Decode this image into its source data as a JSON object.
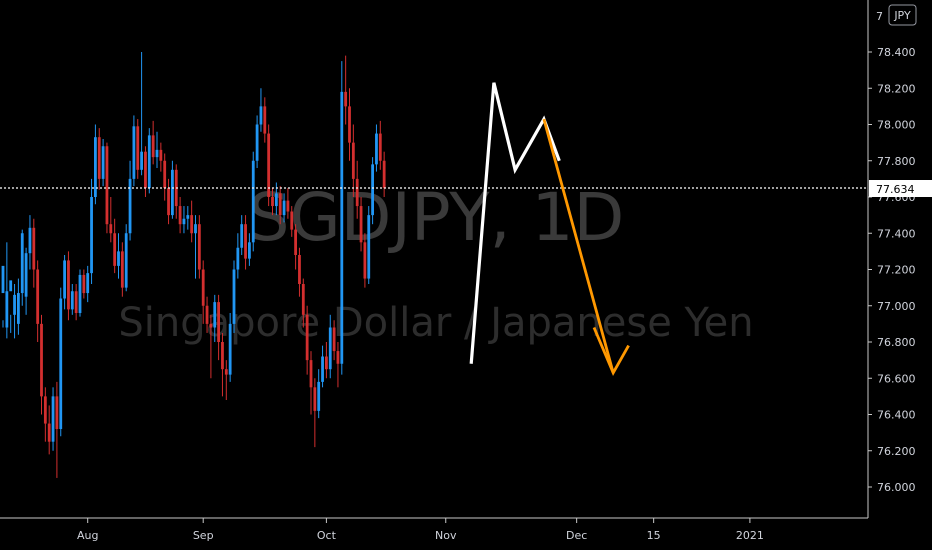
{
  "chart_data": {
    "type": "candlestick",
    "symbol": "SGDJPY, 1D",
    "description": "Singapore Dollar / Japanese Yen",
    "currency": "JPY",
    "current_price": "77.634",
    "y_ticks": [
      76.0,
      76.2,
      76.4,
      76.6,
      76.8,
      77.0,
      77.2,
      77.4,
      77.6,
      77.8,
      78.0,
      78.2,
      78.4
    ],
    "y_tick_labels": [
      "76.000",
      "76.200",
      "76.400",
      "76.600",
      "76.800",
      "77.000",
      "77.200",
      "77.400",
      "77.600",
      "77.800",
      "78.000",
      "78.200",
      "78.400"
    ],
    "ylim": [
      75.83,
      78.78
    ],
    "x_ticks": [
      {
        "label": "Aug",
        "index": 22
      },
      {
        "label": "Sep",
        "index": 52
      },
      {
        "label": "Oct",
        "index": 84
      },
      {
        "label": "Nov",
        "index": 115
      },
      {
        "label": "Dec",
        "index": 149
      },
      {
        "label": "15",
        "index": 169
      },
      {
        "label": "2021",
        "index": 194
      }
    ],
    "up_color": "#2196f3",
    "down_color": "#d32f2f",
    "white_pattern": [
      [
        121.6,
        76.68
      ],
      [
        127.5,
        78.23
      ],
      [
        133,
        77.75
      ],
      [
        140.5,
        78.03
      ],
      [
        144.5,
        77.8
      ]
    ],
    "orange_projection": [
      [
        140.5,
        78.03
      ],
      [
        158.5,
        76.63
      ]
    ],
    "orange_arrowhead": [
      [
        153.5,
        76.88
      ],
      [
        158.5,
        76.63
      ],
      [
        162.5,
        76.78
      ]
    ],
    "candles": [
      [
        77.07,
        77.22,
        76.92,
        76.88
      ],
      [
        76.88,
        77.08,
        77.35,
        76.82
      ],
      [
        77.08,
        77.14,
        76.95,
        76.85
      ],
      [
        76.95,
        77.06,
        77.12,
        76.82
      ],
      [
        76.9,
        77.07,
        77.15,
        76.84
      ],
      [
        77.07,
        77.4,
        77.42,
        77.0
      ],
      [
        77.05,
        77.29,
        77.32,
        76.95
      ],
      [
        77.29,
        77.43,
        77.5,
        77.2
      ],
      [
        77.43,
        77.2,
        77.48,
        77.1
      ],
      [
        77.2,
        76.9,
        77.25,
        76.8
      ],
      [
        76.9,
        76.5,
        76.95,
        76.4
      ],
      [
        76.5,
        76.35,
        76.55,
        76.25
      ],
      [
        76.35,
        76.25,
        76.45,
        76.18
      ],
      [
        76.25,
        76.5,
        76.55,
        76.2
      ],
      [
        76.5,
        76.32,
        76.58,
        76.05
      ],
      [
        76.32,
        77.04,
        77.1,
        76.28
      ],
      [
        77.04,
        77.25,
        77.28,
        76.98
      ],
      [
        77.25,
        76.98,
        77.3,
        76.92
      ],
      [
        76.98,
        77.08,
        77.12,
        76.95
      ],
      [
        77.08,
        76.96,
        77.12,
        76.92
      ],
      [
        76.96,
        77.17,
        77.2,
        76.94
      ],
      [
        77.17,
        77.07,
        77.2,
        77.04
      ],
      [
        77.07,
        77.18,
        77.22,
        77.02
      ],
      [
        77.18,
        77.6,
        77.7,
        77.12
      ],
      [
        77.6,
        77.93,
        78.0,
        77.56
      ],
      [
        77.93,
        77.7,
        77.98,
        77.64
      ],
      [
        77.7,
        77.88,
        77.92,
        77.66
      ],
      [
        77.88,
        77.45,
        77.9,
        77.4
      ],
      [
        77.45,
        77.4,
        77.6,
        77.35
      ],
      [
        77.4,
        77.22,
        77.48,
        77.18
      ],
      [
        77.22,
        77.3,
        77.4,
        77.15
      ],
      [
        77.3,
        77.1,
        77.35,
        77.05
      ],
      [
        77.1,
        77.4,
        77.45,
        77.08
      ],
      [
        77.4,
        77.7,
        77.8,
        77.36
      ],
      [
        77.7,
        77.99,
        78.05,
        77.66
      ],
      [
        77.99,
        77.75,
        78.03,
        77.7
      ],
      [
        77.75,
        77.85,
        78.4,
        77.72
      ],
      [
        77.85,
        77.65,
        77.88,
        77.6
      ],
      [
        77.65,
        77.94,
        77.98,
        77.62
      ],
      [
        77.94,
        77.82,
        78.02,
        77.78
      ],
      [
        77.82,
        77.86,
        77.96,
        77.76
      ],
      [
        77.86,
        77.8,
        77.9,
        77.74
      ],
      [
        77.8,
        77.65,
        77.84,
        77.58
      ],
      [
        77.65,
        77.5,
        77.7,
        77.45
      ],
      [
        77.5,
        77.75,
        77.8,
        77.48
      ],
      [
        77.75,
        77.55,
        77.78,
        77.48
      ],
      [
        77.55,
        77.45,
        77.6,
        77.4
      ],
      [
        77.45,
        77.48,
        77.55,
        77.4
      ],
      [
        77.48,
        77.5,
        77.55,
        77.42
      ],
      [
        77.5,
        77.4,
        77.58,
        77.35
      ],
      [
        77.4,
        77.45,
        77.5,
        77.15
      ],
      [
        77.45,
        77.2,
        77.5,
        77.15
      ],
      [
        77.2,
        77.0,
        77.25,
        76.9
      ],
      [
        77.0,
        76.9,
        77.05,
        76.85
      ],
      [
        76.9,
        76.88,
        76.95,
        76.6
      ],
      [
        76.88,
        77.02,
        77.06,
        76.8
      ],
      [
        77.02,
        76.8,
        77.06,
        76.7
      ],
      [
        76.8,
        76.65,
        76.85,
        76.5
      ],
      [
        76.65,
        76.62,
        76.7,
        76.48
      ],
      [
        76.62,
        76.9,
        76.96,
        76.58
      ],
      [
        76.9,
        77.2,
        77.25,
        76.85
      ],
      [
        77.2,
        77.32,
        77.4,
        77.15
      ],
      [
        77.32,
        77.45,
        77.5,
        77.28
      ],
      [
        77.45,
        77.26,
        77.5,
        77.2
      ],
      [
        77.26,
        77.35,
        77.4,
        77.22
      ],
      [
        77.35,
        77.8,
        77.85,
        77.3
      ],
      [
        77.8,
        78.0,
        78.05,
        77.76
      ],
      [
        78.0,
        78.1,
        78.2,
        77.96
      ],
      [
        78.1,
        77.95,
        78.15,
        77.9
      ],
      [
        77.95,
        77.6,
        78.0,
        77.55
      ],
      [
        77.6,
        77.55,
        77.65,
        77.5
      ],
      [
        77.55,
        77.62,
        77.68,
        77.5
      ],
      [
        77.62,
        77.5,
        77.66,
        77.45
      ],
      [
        77.5,
        77.58,
        77.62,
        77.46
      ],
      [
        77.58,
        77.52,
        77.65,
        77.48
      ],
      [
        77.52,
        77.42,
        77.55,
        77.38
      ],
      [
        77.42,
        77.28,
        77.45,
        77.2
      ],
      [
        77.28,
        77.12,
        77.32,
        77.05
      ],
      [
        77.12,
        76.95,
        77.15,
        76.88
      ],
      [
        76.95,
        76.7,
        77.0,
        76.62
      ],
      [
        76.7,
        76.55,
        76.75,
        76.4
      ],
      [
        76.55,
        76.42,
        76.6,
        76.22
      ],
      [
        76.42,
        76.58,
        76.65,
        76.38
      ],
      [
        76.58,
        76.72,
        76.78,
        76.55
      ],
      [
        76.72,
        76.65,
        76.8,
        76.6
      ],
      [
        76.65,
        76.88,
        76.95,
        76.6
      ],
      [
        76.88,
        76.75,
        76.92,
        76.7
      ],
      [
        76.75,
        76.68,
        76.8,
        76.55
      ],
      [
        76.68,
        78.18,
        78.35,
        76.62
      ],
      [
        78.18,
        78.1,
        78.38,
        78.0
      ],
      [
        78.1,
        77.9,
        78.2,
        77.8
      ],
      [
        77.9,
        77.7,
        78.0,
        77.6
      ],
      [
        77.7,
        77.55,
        77.8,
        77.48
      ],
      [
        77.55,
        77.35,
        77.6,
        77.3
      ],
      [
        77.35,
        77.15,
        77.4,
        77.1
      ],
      [
        77.15,
        77.5,
        77.55,
        77.12
      ],
      [
        77.5,
        77.78,
        77.82,
        77.45
      ],
      [
        77.78,
        77.95,
        78.0,
        77.74
      ],
      [
        77.95,
        77.8,
        78.02,
        77.75
      ],
      [
        77.8,
        77.65,
        77.85,
        77.6
      ]
    ]
  }
}
